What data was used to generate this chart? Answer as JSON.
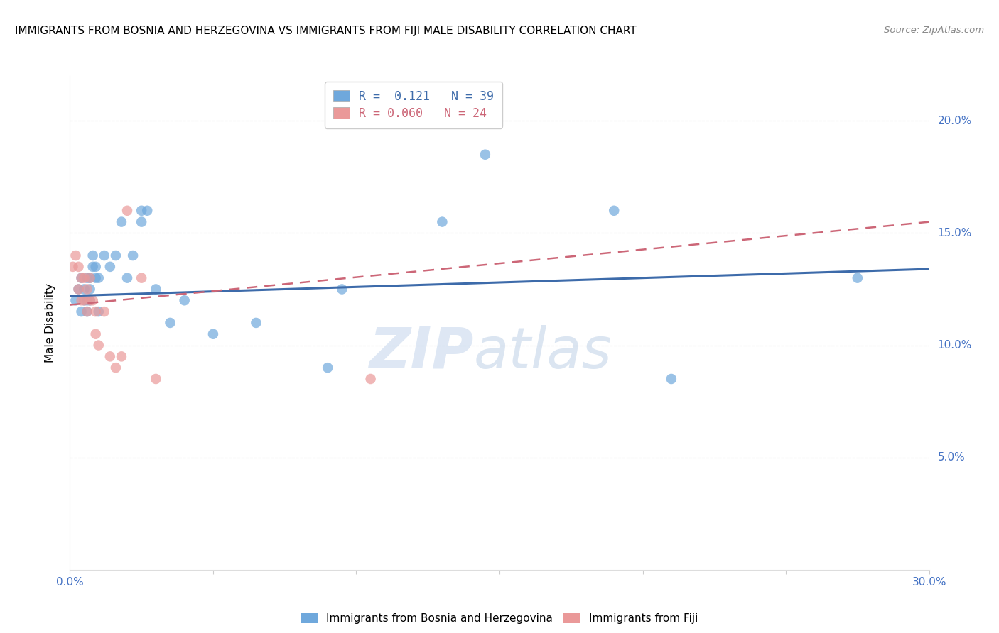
{
  "title": "IMMIGRANTS FROM BOSNIA AND HERZEGOVINA VS IMMIGRANTS FROM FIJI MALE DISABILITY CORRELATION CHART",
  "source": "Source: ZipAtlas.com",
  "ylabel": "Male Disability",
  "xlim": [
    0,
    0.3
  ],
  "ylim": [
    0,
    0.22
  ],
  "ytick_vals": [
    0.0,
    0.05,
    0.1,
    0.15,
    0.2
  ],
  "xtick_vals": [
    0.0,
    0.05,
    0.1,
    0.15,
    0.2,
    0.25,
    0.3
  ],
  "legend_r1_r": "0.121",
  "legend_r1_n": "39",
  "legend_r2_r": "0.060",
  "legend_r2_n": "24",
  "color_bosnia": "#6fa8dc",
  "color_fiji": "#ea9999",
  "line_color_bosnia": "#3d6baa",
  "line_color_fiji": "#cc6677",
  "watermark_zip": "ZIP",
  "watermark_atlas": "atlas",
  "bosnia_x": [
    0.002,
    0.003,
    0.004,
    0.004,
    0.005,
    0.005,
    0.006,
    0.006,
    0.006,
    0.007,
    0.007,
    0.007,
    0.008,
    0.008,
    0.009,
    0.009,
    0.01,
    0.01,
    0.012,
    0.014,
    0.016,
    0.018,
    0.02,
    0.022,
    0.025,
    0.025,
    0.027,
    0.03,
    0.035,
    0.04,
    0.05,
    0.065,
    0.09,
    0.095,
    0.13,
    0.145,
    0.19,
    0.21,
    0.275
  ],
  "bosnia_y": [
    0.12,
    0.125,
    0.13,
    0.115,
    0.12,
    0.125,
    0.13,
    0.12,
    0.115,
    0.125,
    0.13,
    0.12,
    0.135,
    0.14,
    0.13,
    0.135,
    0.13,
    0.115,
    0.14,
    0.135,
    0.14,
    0.155,
    0.13,
    0.14,
    0.16,
    0.155,
    0.16,
    0.125,
    0.11,
    0.12,
    0.105,
    0.11,
    0.09,
    0.125,
    0.155,
    0.185,
    0.16,
    0.085,
    0.13
  ],
  "fiji_x": [
    0.001,
    0.002,
    0.003,
    0.003,
    0.004,
    0.004,
    0.005,
    0.005,
    0.006,
    0.006,
    0.007,
    0.007,
    0.008,
    0.009,
    0.009,
    0.01,
    0.012,
    0.014,
    0.016,
    0.018,
    0.02,
    0.025,
    0.03,
    0.105
  ],
  "fiji_y": [
    0.135,
    0.14,
    0.135,
    0.125,
    0.13,
    0.12,
    0.13,
    0.12,
    0.125,
    0.115,
    0.13,
    0.12,
    0.12,
    0.115,
    0.105,
    0.1,
    0.115,
    0.095,
    0.09,
    0.095,
    0.16,
    0.13,
    0.085,
    0.085
  ],
  "bosnia_line_x0": 0.0,
  "bosnia_line_x1": 0.3,
  "bosnia_line_y0": 0.122,
  "bosnia_line_y1": 0.134,
  "fiji_line_x0": 0.0,
  "fiji_line_x1": 0.3,
  "fiji_line_y0": 0.118,
  "fiji_line_y1": 0.155
}
